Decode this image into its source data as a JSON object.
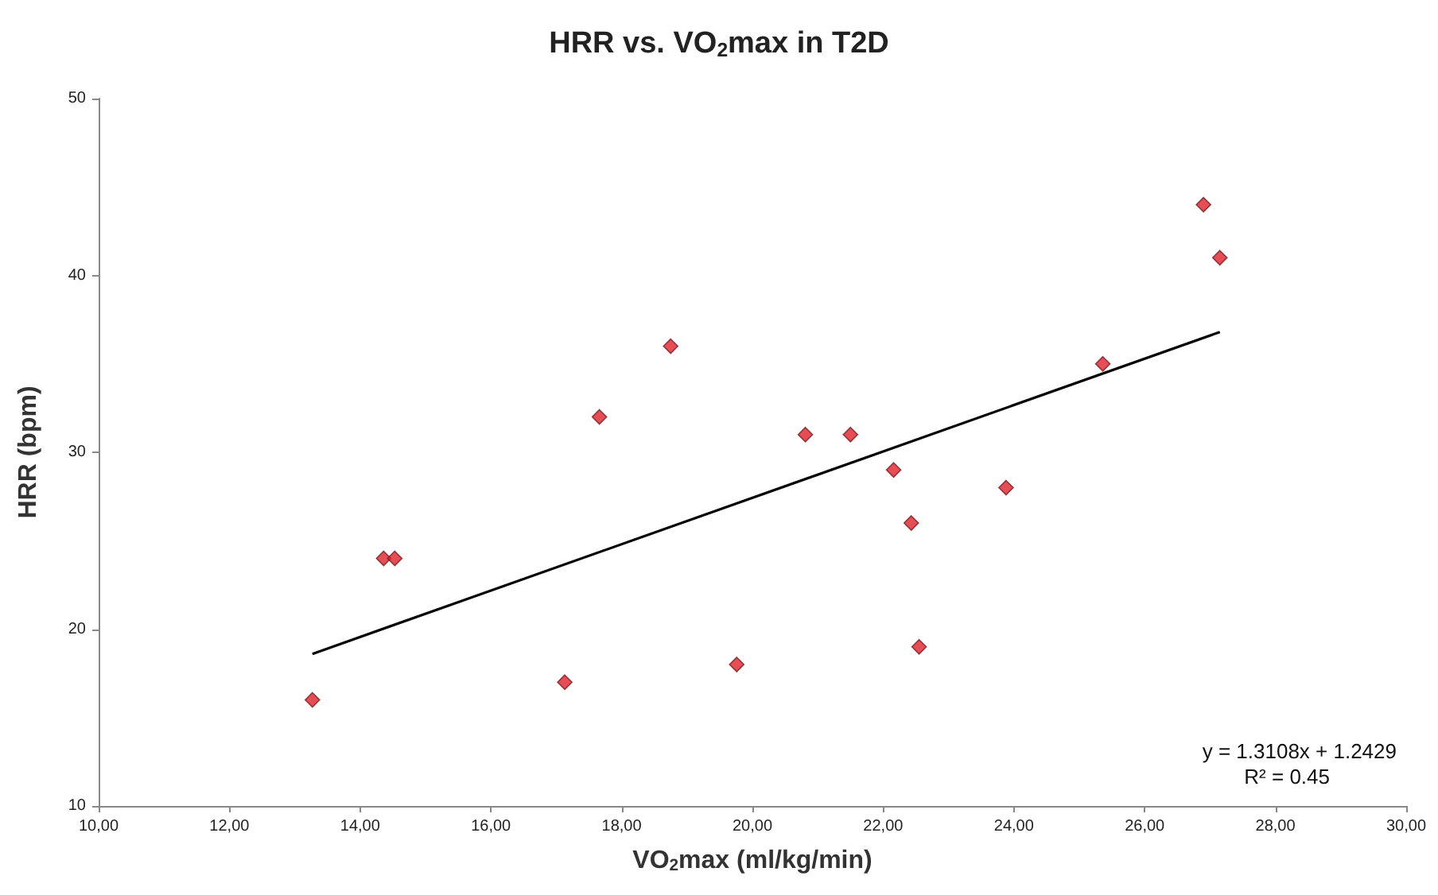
{
  "chart_data": {
    "type": "scatter",
    "title": "HRR vs. VO$_{2}$max in T2D",
    "xlabel": "VO$_{2}$max (ml/kg/min)",
    "ylabel": "HRR (bpm)",
    "series": [
      {
        "color": "#e0202a",
        "marker": "diamond",
        "x": [
          13.27,
          14.36,
          14.53,
          17.13,
          17.66,
          18.75,
          19.76,
          20.81,
          21.5,
          22.16,
          22.43,
          22.55,
          23.88,
          25.36,
          26.9,
          27.15
        ],
        "values": [
          16,
          24,
          24,
          17,
          32,
          36,
          18,
          31,
          31,
          29,
          26,
          19,
          28,
          35,
          44,
          41
        ]
      },
      {
        "type": "line",
        "color": "#000000",
        "marker": "none",
        "x": [
          13.27,
          27.15
        ],
        "values": [
          18.6,
          36.8
        ]
      }
    ],
    "xlim": [
      10,
      30
    ],
    "xticks": [
      {
        "value": 10,
        "label": "10,00"
      },
      {
        "value": 12,
        "label": "12,00"
      },
      {
        "value": 14,
        "label": "14,00"
      },
      {
        "value": 16,
        "label": "16,00"
      },
      {
        "value": 18,
        "label": "18,00"
      },
      {
        "value": 20,
        "label": "20,00"
      },
      {
        "value": 22,
        "label": "22,00"
      },
      {
        "value": 24,
        "label": "24,00"
      },
      {
        "value": 26,
        "label": "26,00"
      },
      {
        "value": 28,
        "label": "28,00"
      },
      {
        "value": 30,
        "label": "30,00"
      }
    ],
    "ylim": [
      10,
      50
    ],
    "yticks": [
      10,
      20,
      30,
      40,
      50
    ],
    "grid": false,
    "annotations": [
      "y = 1.3108x + 1.2429",
      "R² = 0.45"
    ]
  }
}
